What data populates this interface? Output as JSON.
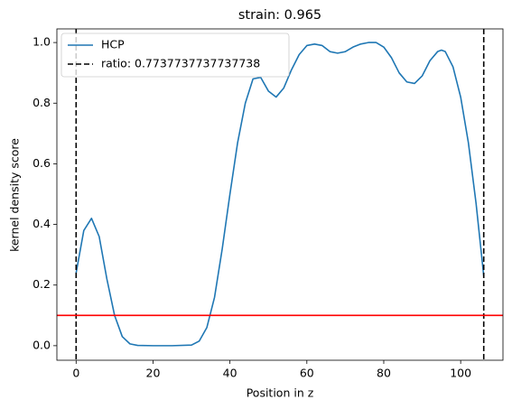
{
  "chart_data": {
    "type": "line",
    "title": "strain: 0.965",
    "xlabel": "Position in z",
    "ylabel": "kernel density score",
    "x": [
      0,
      2,
      4,
      6,
      8,
      10,
      12,
      14,
      16,
      20,
      25,
      30,
      32,
      34,
      36,
      38,
      40,
      42,
      44,
      46,
      48,
      50,
      52,
      54,
      56,
      58,
      60,
      62,
      64,
      66,
      68,
      70,
      72,
      74,
      76,
      78,
      80,
      82,
      84,
      86,
      88,
      90,
      92,
      94,
      95,
      96,
      98,
      100,
      102,
      104,
      106
    ],
    "series": [
      {
        "name": "HCP",
        "color": "#1f77b4",
        "values": [
          0.24,
          0.38,
          0.42,
          0.36,
          0.22,
          0.1,
          0.03,
          0.006,
          0.001,
          0,
          0,
          0.002,
          0.015,
          0.06,
          0.16,
          0.32,
          0.5,
          0.67,
          0.8,
          0.88,
          0.885,
          0.84,
          0.82,
          0.85,
          0.91,
          0.96,
          0.99,
          0.995,
          0.99,
          0.97,
          0.965,
          0.97,
          0.985,
          0.995,
          1.0,
          1.0,
          0.985,
          0.95,
          0.9,
          0.87,
          0.865,
          0.89,
          0.94,
          0.97,
          0.975,
          0.97,
          0.92,
          0.82,
          0.67,
          0.47,
          0.23
        ]
      }
    ],
    "vlines": {
      "name": "ratio: 0.7737737737737738",
      "color": "#000000",
      "x": [
        0,
        106
      ]
    },
    "hline": {
      "value": 0.1,
      "color": "#ff0000"
    },
    "xlim": [
      -5,
      111
    ],
    "ylim": [
      -0.048,
      1.045
    ],
    "xticks": [
      0,
      20,
      40,
      60,
      80,
      100
    ],
    "yticks": [
      {
        "value": 0,
        "label": "0.0"
      },
      0.2,
      0.4,
      0.6,
      0.8,
      {
        "value": 1,
        "label": "1.0"
      }
    ],
    "legend": "upper left"
  }
}
